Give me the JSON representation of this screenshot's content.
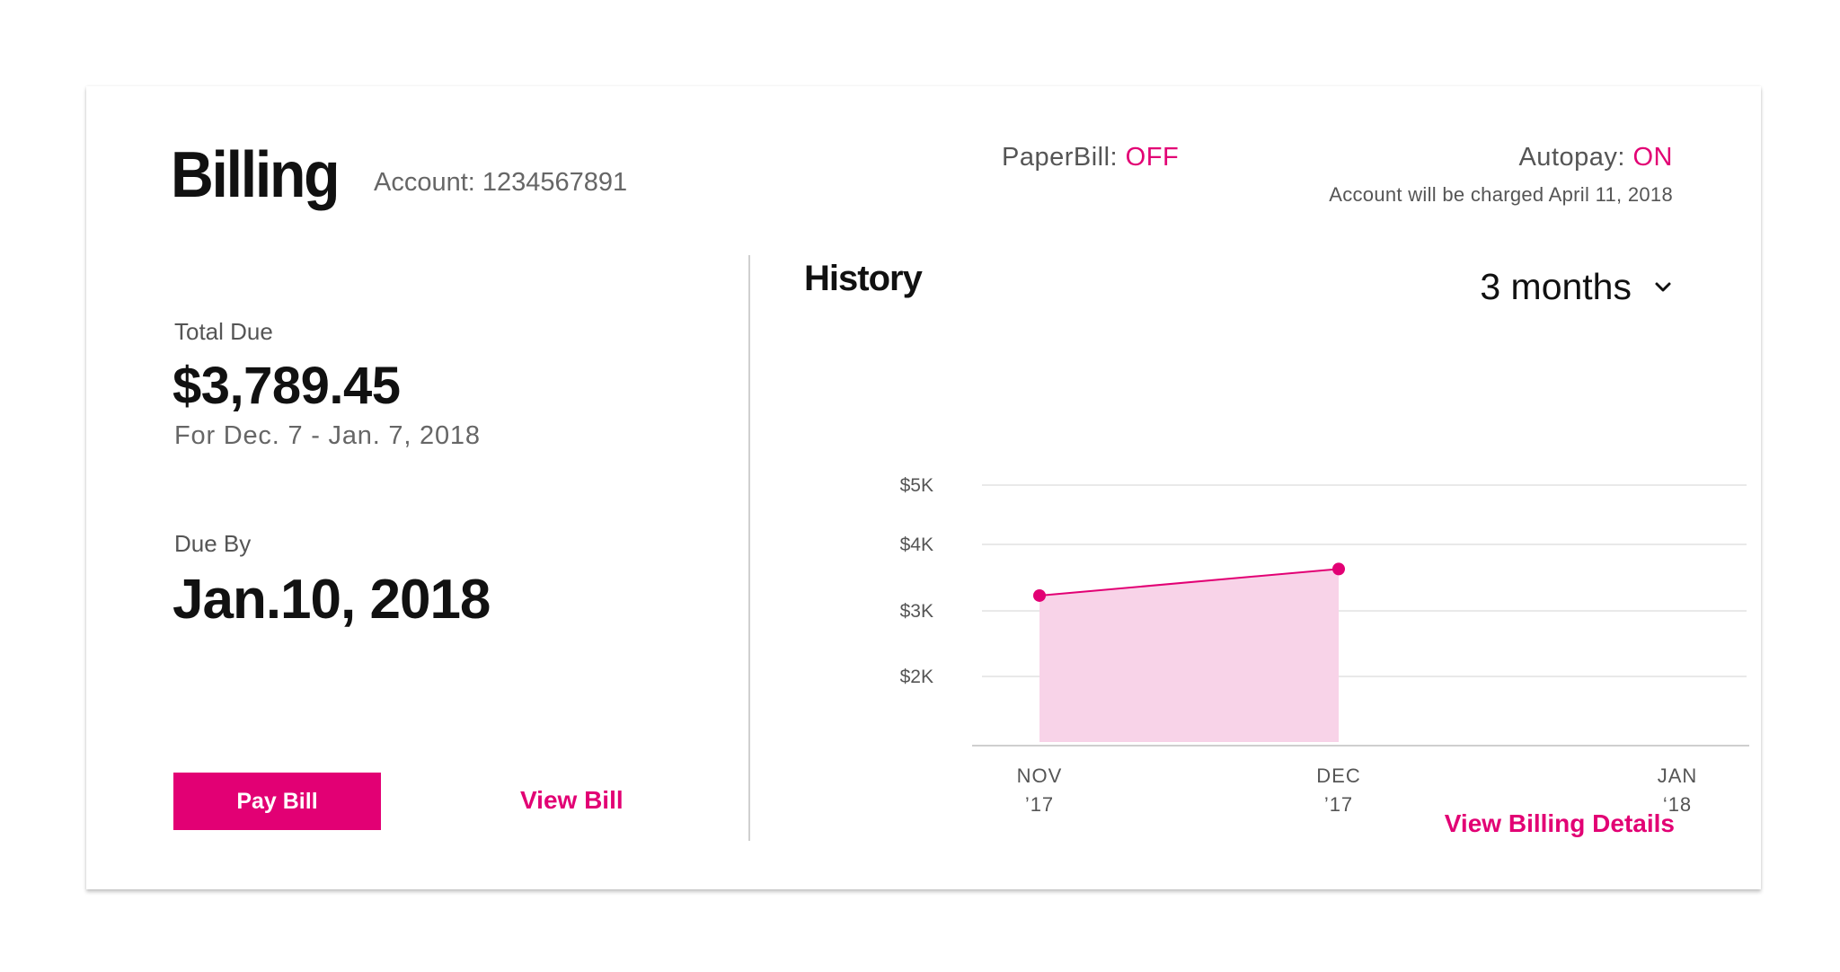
{
  "header": {
    "title": "Billing",
    "account": "Account: 1234567891",
    "paperbill_label": "PaperBill: ",
    "paperbill_status": "OFF",
    "autopay_label": "Autopay: ",
    "autopay_status": "ON",
    "autopay_note": "Account will be charged April 11, 2018"
  },
  "summary": {
    "total_label": "Total Due",
    "total_amount": "$3,789.45",
    "period": "For Dec. 7 - Jan. 7, 2018",
    "due_label": "Due By",
    "due_date": "Jan.10, 2018"
  },
  "actions": {
    "pay_label": "Pay Bill",
    "view_bill_label": "View Bill",
    "details_label": "View Billing Details"
  },
  "history": {
    "title": "History",
    "range_selected": "3 months"
  },
  "colors": {
    "accent": "#e20074",
    "area_fill": "#f8d3e8"
  },
  "chart_data": {
    "type": "area",
    "categories": [
      {
        "month": "NOV",
        "year": "’17"
      },
      {
        "month": "DEC",
        "year": "’17"
      },
      {
        "month": "JAN",
        "year": "‘18"
      }
    ],
    "values": [
      3230,
      3630,
      null
    ],
    "y_ticks": [
      {
        "value": 5000,
        "label": "$5K"
      },
      {
        "value": 4000,
        "label": "$4K"
      },
      {
        "value": 3000,
        "label": "$3K"
      },
      {
        "value": 2000,
        "label": "$2K"
      }
    ],
    "ylim": [
      1000,
      5000
    ],
    "grid": true
  }
}
